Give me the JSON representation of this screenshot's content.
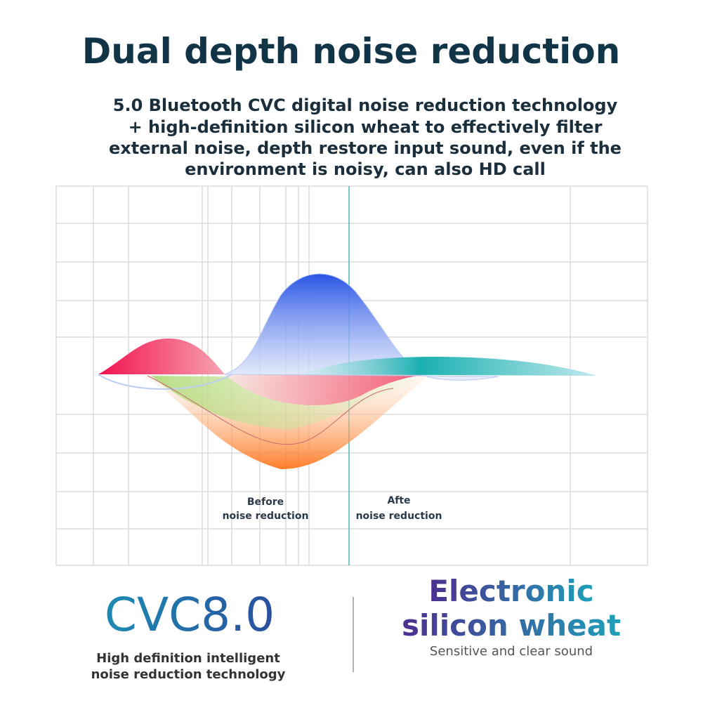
{
  "header": {
    "title": "Dual depth noise reduction",
    "description": [
      "5.0 Bluetooth CVC digital noise reduction technology",
      "+ high-definition silicon wheat to effectively filter",
      "external noise, depth restore input sound, even if the",
      "environment is noisy, can also HD call"
    ]
  },
  "diagram": {
    "before_label": [
      "Before",
      "noise reduction"
    ],
    "after_label": [
      "Afte",
      "noise reduction"
    ]
  },
  "features": [
    {
      "title": "CVC8.0",
      "caption": [
        "High definition intelligent",
        "noise reduction technology"
      ]
    },
    {
      "title": [
        "Electronic",
        "silicon wheat"
      ],
      "caption": [
        "Sensitive and clear sound"
      ]
    }
  ]
}
